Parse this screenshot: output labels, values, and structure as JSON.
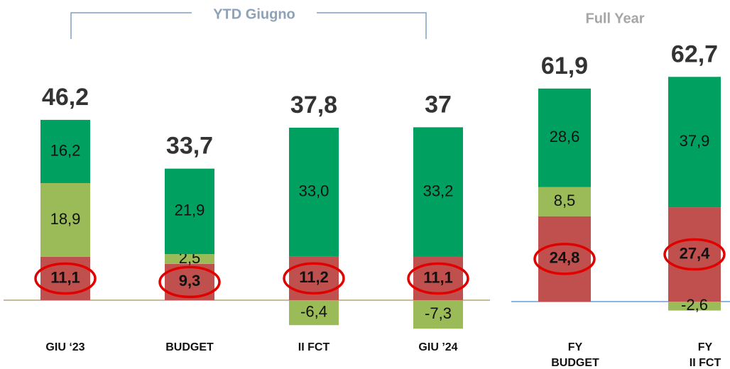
{
  "chart_data": [
    {
      "type": "bar",
      "stacked": true,
      "title": "YTD Giugno",
      "categories": [
        "GIU ‘23",
        "BUDGET",
        "II FCT",
        "GIU ’24"
      ],
      "ylim": [
        -10,
        60
      ],
      "series": [
        {
          "color": "#c0504d",
          "values": [
            11.1,
            9.3,
            11.2,
            11.1
          ],
          "value_labels": [
            "11,1",
            "9,3",
            "11,2",
            "11,1"
          ]
        },
        {
          "color": "#9bbb59",
          "values": [
            18.9,
            2.5,
            -6.4,
            -7.3
          ],
          "value_labels": [
            "18,9",
            "2,5",
            "-6,4",
            "-7,3"
          ]
        },
        {
          "color": "#00a060",
          "values": [
            16.2,
            21.9,
            33.0,
            33.2
          ],
          "value_labels": [
            "16,2",
            "21,9",
            "33,0",
            "33,2"
          ]
        }
      ],
      "totals": [
        46.2,
        33.7,
        37.8,
        37
      ],
      "total_labels": [
        "46,2",
        "33,7",
        "37,8",
        "37"
      ]
    },
    {
      "type": "bar",
      "stacked": true,
      "title": "Full Year",
      "categories": [
        "FY\nBUDGET",
        "FY\nII FCT"
      ],
      "ylim": [
        -10,
        70
      ],
      "series": [
        {
          "color": "#c0504d",
          "values": [
            24.8,
            27.4
          ],
          "value_labels": [
            "24,8",
            "27,4"
          ]
        },
        {
          "color": "#9bbb59",
          "values": [
            8.5,
            -2.6
          ],
          "value_labels": [
            "8,5",
            "-2,6"
          ]
        },
        {
          "color": "#00a060",
          "values": [
            28.6,
            37.9
          ],
          "value_labels": [
            "28,6",
            "37,9"
          ]
        }
      ],
      "totals": [
        61.9,
        62.7
      ],
      "total_labels": [
        "61,9",
        "62,7"
      ]
    }
  ]
}
